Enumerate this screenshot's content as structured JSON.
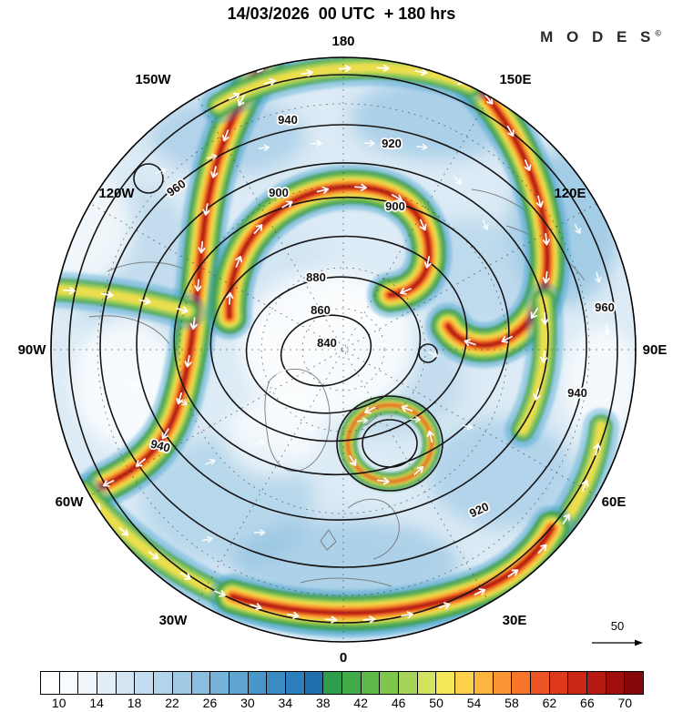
{
  "header": {
    "title": "14/03/2026  00 UTC  + 180 hrs",
    "brand": "M O D E S",
    "brand_mark": "©"
  },
  "map": {
    "lon_labels": [
      "180",
      "150W",
      "150E",
      "120W",
      "120E",
      "90W",
      "90E",
      "60W",
      "60E",
      "30W",
      "30E",
      "0"
    ],
    "contour_labels": [
      "840",
      "860",
      "880",
      "900",
      "920",
      "940",
      "960"
    ],
    "ref_arrow_label": "50"
  },
  "colorbar": {
    "tick_labels": [
      "10",
      "14",
      "18",
      "22",
      "26",
      "30",
      "34",
      "38",
      "42",
      "46",
      "50",
      "54",
      "58",
      "62",
      "66",
      "70"
    ],
    "colors": [
      "#ffffff",
      "#f9fcfe",
      "#eef6fc",
      "#e1eef8",
      "#d3e5f3",
      "#c4dcef",
      "#b2d3ea",
      "#9fc9e5",
      "#8abedf",
      "#74b2d9",
      "#5ea5d2",
      "#4997ca",
      "#3a8bc2",
      "#2b7fbc",
      "#1e6fae",
      "#2e9e4e",
      "#41ab49",
      "#5cb948",
      "#7fc64c",
      "#a6d45a",
      "#d3e35f",
      "#f5e65a",
      "#fdd24a",
      "#fcb53e",
      "#fa9633",
      "#f5762b",
      "#ec5424",
      "#de391d",
      "#cc2617",
      "#b61911",
      "#9e0f0c",
      "#870808"
    ]
  },
  "chart_data": {
    "type": "heatmap",
    "title": "14/03/2026  00 UTC  + 180 hrs",
    "projection": "north-polar circular map, 180 at top, 0 at bottom",
    "longitude_ring_labels": [
      "180",
      "150W",
      "150E",
      "120W",
      "120E",
      "90W",
      "90E",
      "60W",
      "60E",
      "30W",
      "30E",
      "0"
    ],
    "shading_colorbar": {
      "tick_values": [
        10,
        14,
        18,
        22,
        26,
        30,
        34,
        38,
        42,
        46,
        50,
        54,
        58,
        62,
        66,
        70
      ],
      "cell_step": 2,
      "range": [
        8,
        72
      ],
      "colors": [
        "#ffffff",
        "#f9fcfe",
        "#eef6fc",
        "#e1eef8",
        "#d3e5f3",
        "#c4dcef",
        "#b2d3ea",
        "#9fc9e5",
        "#8abedf",
        "#74b2d9",
        "#5ea5d2",
        "#4997ca",
        "#3a8bc2",
        "#2b7fbc",
        "#1e6fae",
        "#2e9e4e",
        "#41ab49",
        "#5cb948",
        "#7fc64c",
        "#a6d45a",
        "#d3e35f",
        "#f5e65a",
        "#fdd24a",
        "#fcb53e",
        "#fa9633",
        "#f5762b",
        "#ec5424",
        "#de391d",
        "#cc2617",
        "#b61911",
        "#9e0f0c",
        "#870808"
      ]
    },
    "contour_line_levels": [
      840,
      860,
      880,
      900,
      920,
      940,
      960
    ],
    "contour_interval": 20,
    "reference_arrow_value": 50,
    "legend_position": "bottom",
    "overlays": [
      "filled wind-speed shading",
      "black height contour lines",
      "white flow arrows",
      "dashed graticule",
      "gray coastlines"
    ]
  }
}
